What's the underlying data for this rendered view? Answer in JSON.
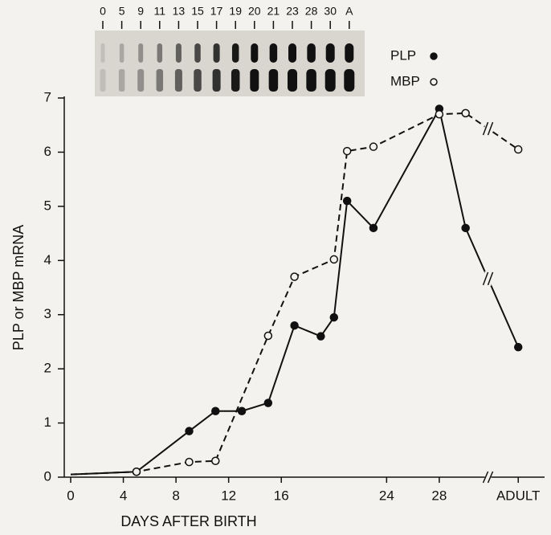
{
  "chart_data": {
    "type": "line",
    "blot": {
      "lanes": [
        "0",
        "5",
        "9",
        "11",
        "13",
        "15",
        "17",
        "19",
        "20",
        "21",
        "23",
        "28",
        "30",
        "A"
      ]
    },
    "x_label": "DAYS AFTER BIRTH",
    "y_label": "PLP or MBP mRNA",
    "xlim": [
      0,
      36
    ],
    "ylim": [
      0,
      7
    ],
    "xticks": [
      0,
      4,
      8,
      12,
      16,
      24,
      28,
      {
        "value": 34,
        "label": "ADULT"
      }
    ],
    "yticks": [
      0,
      1,
      2,
      3,
      4,
      5,
      6,
      7
    ],
    "x_break": 31.7,
    "series": [
      {
        "name": "PLP",
        "color": "#111111",
        "line_style": "solid",
        "marker": "filled",
        "x": [
          0,
          5,
          9,
          11,
          13,
          15,
          17,
          19,
          20,
          21,
          23,
          28,
          30,
          34
        ],
        "values": [
          0.05,
          0.1,
          0.85,
          1.22,
          1.22,
          1.37,
          2.8,
          2.6,
          2.95,
          5.1,
          4.6,
          6.8,
          4.6,
          2.4
        ]
      },
      {
        "name": "MBP",
        "color": "#111111",
        "line_style": "dashed",
        "marker": "open",
        "x": [
          0,
          5,
          9,
          11,
          15,
          17,
          20,
          21,
          23,
          28,
          30,
          34
        ],
        "values": [
          0.05,
          0.1,
          0.28,
          0.3,
          2.61,
          3.7,
          4.02,
          6.02,
          6.1,
          6.7,
          6.72,
          6.05
        ]
      }
    ]
  }
}
